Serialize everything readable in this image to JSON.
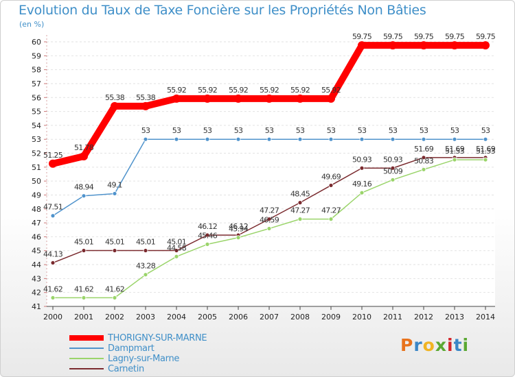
{
  "chart_data": {
    "type": "line",
    "title": "Evolution du Taux de Taxe Foncière sur les Propriétés Non Bâties",
    "subtitle": "(en %)",
    "xlabel": "",
    "ylabel": "(en %)",
    "ylim": [
      41,
      60
    ],
    "yticks": [
      "41",
      "42",
      "43",
      "44",
      "45",
      "46",
      "47",
      "48",
      "49",
      "50",
      "51",
      "52",
      "53",
      "54",
      "55",
      "56",
      "57",
      "58",
      "59",
      "60"
    ],
    "categories": [
      "2000",
      "2001",
      "2002",
      "2003",
      "2004",
      "2005",
      "2006",
      "2007",
      "2008",
      "2009",
      "2010",
      "2011",
      "2012",
      "2013",
      "2014"
    ],
    "grid": "horizontal-dashed",
    "legend_position": "bottom-left",
    "series": [
      {
        "name": "THORIGNY-SUR-MARNE",
        "color": "#ff0000",
        "values": [
          51.25,
          51.78,
          55.38,
          55.38,
          55.92,
          55.92,
          55.92,
          55.92,
          55.92,
          55.92,
          59.75,
          59.75,
          59.75,
          59.75,
          59.75
        ],
        "labels": [
          "51.25",
          "51.78",
          "55.38",
          "55.38",
          "55.92",
          "55.92",
          "55.92",
          "55.92",
          "55.92",
          "55.92",
          "59.75",
          "59.75",
          "59.75",
          "59.75",
          "59.75"
        ]
      },
      {
        "name": "Dampmart",
        "color": "#4f93cc",
        "values": [
          47.51,
          48.94,
          49.1,
          53,
          53,
          53,
          53,
          53,
          53,
          53,
          53,
          53,
          53,
          53,
          53
        ],
        "labels": [
          "47.51",
          "48.94",
          "49.1",
          "53",
          "53",
          "53",
          "53",
          "53",
          "53",
          "53",
          "53",
          "53",
          "53",
          "53",
          "53"
        ]
      },
      {
        "name": "Lagny-sur-Marne",
        "color": "#9ad46a",
        "values": [
          41.62,
          41.62,
          41.62,
          43.28,
          44.58,
          45.46,
          45.94,
          46.59,
          47.27,
          47.27,
          49.16,
          50.09,
          50.83,
          51.53,
          51.53
        ],
        "labels": [
          "41.62",
          "41.62",
          "41.62",
          "43.28",
          "44.58",
          "45.46",
          "45.94",
          "46.59",
          "47.27",
          "47.27",
          "49.16",
          "50.09",
          "50.83",
          "51.53",
          "51.53"
        ]
      },
      {
        "name": "Carnetin",
        "color": "#7a2a2e",
        "values": [
          44.13,
          45.01,
          45.01,
          45.01,
          45.01,
          46.12,
          46.12,
          47.27,
          48.45,
          49.69,
          50.93,
          50.93,
          51.69,
          51.69,
          51.69
        ],
        "labels": [
          "44.13",
          "45.01",
          "45.01",
          "45.01",
          "45.01",
          "46.12",
          "46.12",
          "47.27",
          "48.45",
          "49.69",
          "50.93",
          "50.93",
          "51.69",
          "51.69",
          "51.69"
        ]
      }
    ]
  },
  "logo": {
    "letters": [
      "P",
      "r",
      "o",
      "x",
      "i",
      "t",
      "i"
    ],
    "colors": [
      "#e8731d",
      "#3b86c6",
      "#f0b423",
      "#5aa832",
      "#d4262c",
      "#3b86c6",
      "#5aa832"
    ]
  }
}
